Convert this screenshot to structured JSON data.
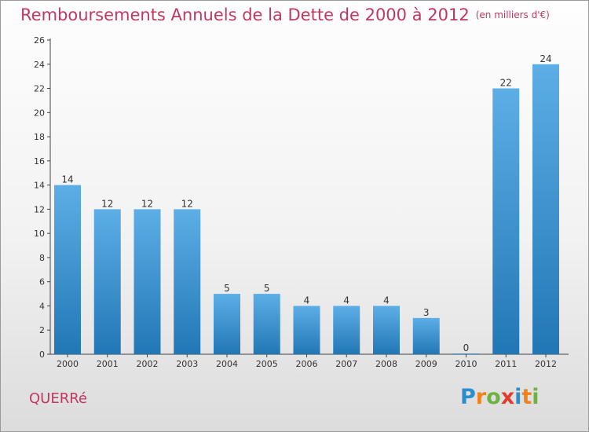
{
  "chart_data": {
    "type": "bar",
    "title": "Remboursements Annuels de la Dette de 2000 à 2012",
    "unit_note": "(en milliers d'€)",
    "categories": [
      "2000",
      "2001",
      "2002",
      "2003",
      "2004",
      "2005",
      "2006",
      "2007",
      "2008",
      "2009",
      "2010",
      "2011",
      "2012"
    ],
    "values": [
      14,
      12,
      12,
      12,
      5,
      5,
      4,
      4,
      4,
      3,
      0,
      22,
      24
    ],
    "ylim": [
      0,
      26
    ],
    "yticks": [
      0,
      2,
      4,
      6,
      8,
      10,
      12,
      14,
      16,
      18,
      20,
      22,
      24,
      26
    ],
    "xlabel": "",
    "ylabel": "",
    "grid": false
  },
  "commune": "QUERRé",
  "logo": {
    "letters": [
      "P",
      "r",
      "o",
      "x",
      "i",
      "t",
      "i"
    ],
    "colors": [
      "#2a8fd0",
      "#f0821e",
      "#6cb33f",
      "#e53b2c",
      "#2a8fd0",
      "#f0821e",
      "#6cb33f"
    ]
  },
  "colors": {
    "bar_top": "#5daee6",
    "bar_bottom": "#2177b5",
    "accent": "#c0375f"
  }
}
